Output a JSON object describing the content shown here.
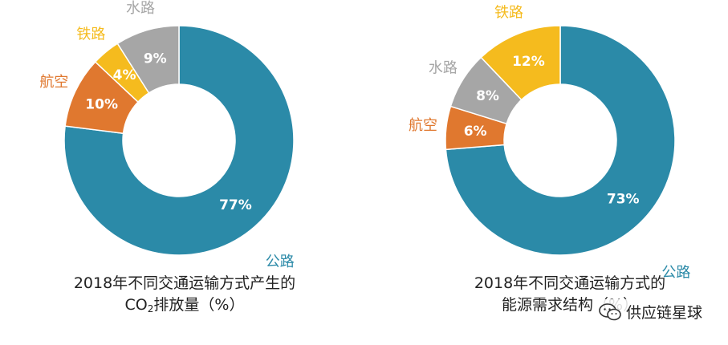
{
  "chart_data": [
    {
      "type": "pie",
      "donut": true,
      "caption_line1": "2018年不同交通运输方式产生的",
      "caption_line2_pre": "CO",
      "caption_line2_sub": "2",
      "caption_line2_post": "排放量（%）",
      "slices": [
        {
          "label": "公路",
          "value": 77,
          "value_label": "77%",
          "color": "#2b8aa8"
        },
        {
          "label": "航空",
          "value": 10,
          "value_label": "10%",
          "color": "#e0782f"
        },
        {
          "label": "铁路",
          "value": 4,
          "value_label": "4%",
          "color": "#f5bb1e"
        },
        {
          "label": "水路",
          "value": 9,
          "value_label": "9%",
          "color": "#a6a6a6"
        }
      ]
    },
    {
      "type": "pie",
      "donut": true,
      "caption_line1": "2018年不同交通运输方式的",
      "caption_line2": "能源需求结构（%）",
      "slices": [
        {
          "label": "公路",
          "value": 73,
          "value_label": "73%",
          "color": "#2b8aa8"
        },
        {
          "label": "航空",
          "value": 6,
          "value_label": "6%",
          "color": "#e0782f"
        },
        {
          "label": "水路",
          "value": 8,
          "value_label": "8%",
          "color": "#a6a6a6"
        },
        {
          "label": "铁路",
          "value": 12,
          "value_label": "12%",
          "color": "#f5bb1e"
        }
      ]
    }
  ],
  "watermark": {
    "text": "供应链星球",
    "icon": "wechat-icon"
  }
}
